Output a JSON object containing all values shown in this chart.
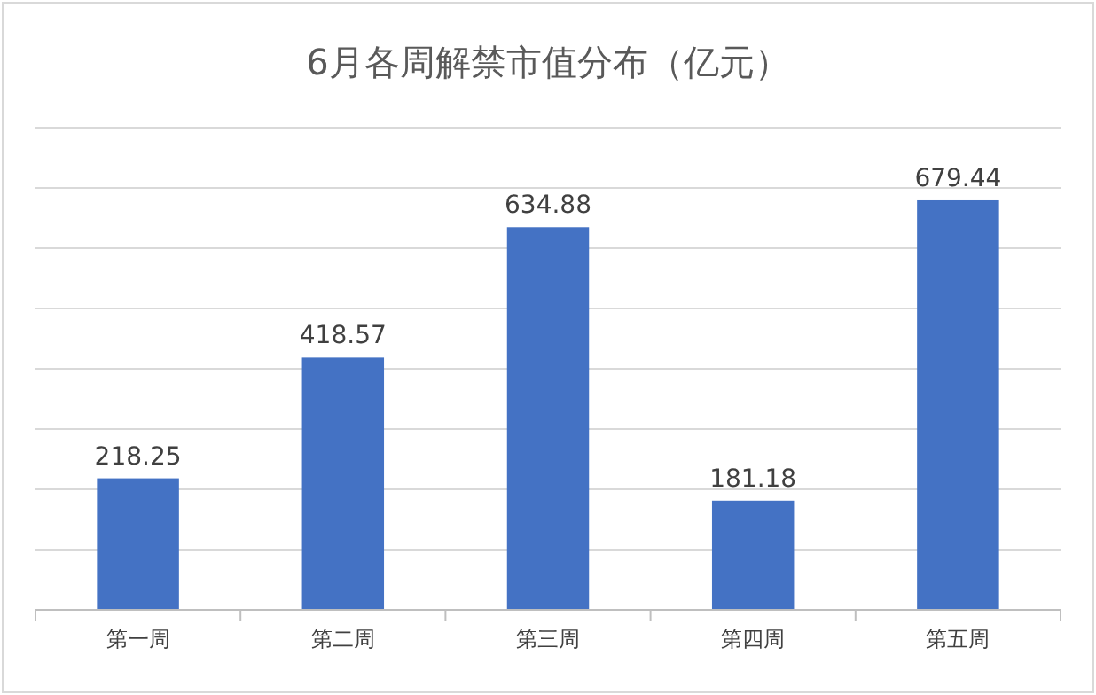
{
  "chart_data": {
    "type": "bar",
    "title": "6月各周解禁市值分布（亿元）",
    "categories": [
      "第一周",
      "第二周",
      "第三周",
      "第四周",
      "第五周"
    ],
    "values": [
      218.25,
      418.57,
      634.88,
      181.18,
      679.44
    ],
    "color": "#4472c4",
    "ylim": [
      0,
      800
    ],
    "yticks": [
      {
        "value": 0,
        "label": null
      },
      {
        "value": 100,
        "label": null
      },
      {
        "value": 200,
        "label": null
      },
      {
        "value": 300,
        "label": null
      },
      {
        "value": 400,
        "label": null
      },
      {
        "value": 500,
        "label": null
      },
      {
        "value": 600,
        "label": null
      },
      {
        "value": 700,
        "label": null
      },
      {
        "value": 800,
        "label": null
      }
    ],
    "grid": true,
    "data_labels": true,
    "tick_labels": "x"
  }
}
